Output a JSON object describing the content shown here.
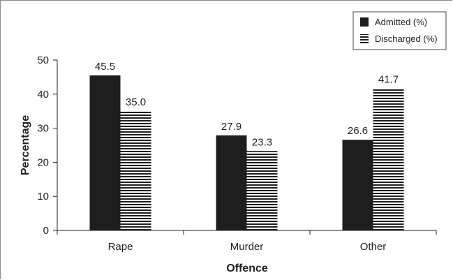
{
  "chart_data": {
    "type": "bar",
    "categories": [
      "Rape",
      "Murder",
      "Other"
    ],
    "series": [
      {
        "name": "Admitted (%)",
        "values": [
          45.5,
          27.9,
          26.6
        ],
        "data_labels": [
          "45.5",
          "27.9",
          "26.6"
        ],
        "color": "#1e1e1e",
        "pattern": "solid"
      },
      {
        "name": "Discharged (%)",
        "values": [
          35.0,
          23.3,
          41.7
        ],
        "data_labels": [
          "35.0",
          "23.3",
          "41.7"
        ],
        "color": "#1e1e1e",
        "pattern": "horizontal-stripes"
      }
    ],
    "xlabel": "Offence",
    "ylabel": "Percentage",
    "ylim": [
      0,
      50
    ],
    "yticks": [
      0,
      10,
      20,
      30,
      40,
      50
    ],
    "ytick_labels": [
      "0",
      "10",
      "20",
      "30",
      "40",
      "50"
    ],
    "grid": false,
    "legend_position": "top-right"
  }
}
